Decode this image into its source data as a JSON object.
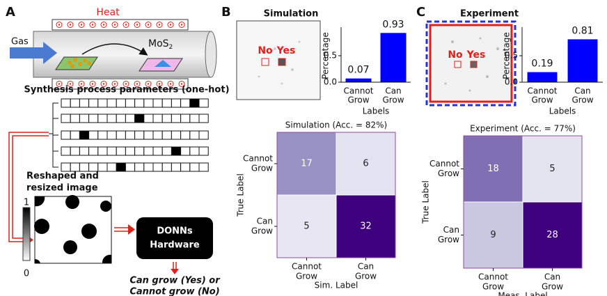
{
  "figure": {
    "panel_a": {
      "letter": "A",
      "heat": "Heat",
      "gas": "Gas",
      "product": "MoS",
      "product_subscript": "2",
      "params_title": "Synthesis process parameters (one-hot)",
      "one_hot": {
        "cells": 16,
        "hot_index": [
          14,
          8,
          2,
          12,
          6
        ]
      },
      "image_title": [
        "Reshaped and",
        "resized image"
      ],
      "colorbar_ticks": [
        1,
        0
      ],
      "hardware": [
        "DONNs",
        "Hardware"
      ],
      "output": [
        "Can grow (Yes) or",
        "Cannot grow (No)"
      ]
    },
    "panel_b": {
      "letter": "B",
      "title": "Simulation",
      "image_labels": [
        "No",
        "Yes"
      ]
    },
    "panel_c": {
      "letter": "C",
      "title": "Experiment",
      "image_labels": [
        "No",
        "Yes"
      ]
    }
  },
  "chart_data": [
    {
      "type": "bar",
      "categories": [
        [
          "Cannot",
          "Grow"
        ],
        [
          "Can",
          "Grow"
        ]
      ],
      "values": [
        0.07,
        0.93
      ],
      "color": "#0000ff",
      "ylabel": "Percentage",
      "xlabel": "Labels",
      "ylim": [
        0,
        1
      ],
      "yticks": [
        {
          "value": 0,
          "label": "0.0"
        },
        {
          "value": 0.5,
          "label": "0.5"
        }
      ]
    },
    {
      "type": "heatmap",
      "title": "Simulation (Acc. = 82%)",
      "ylabel": "True Label",
      "xlabel": "Sim. Label",
      "row_labels": [
        [
          "Cannot",
          "Grow"
        ],
        [
          "Can",
          "Grow"
        ]
      ],
      "col_labels": [
        [
          "Cannot",
          "Grow"
        ],
        [
          "Can",
          "Grow"
        ]
      ],
      "values": [
        [
          17,
          6
        ],
        [
          5,
          32
        ]
      ],
      "colormap": "Purples"
    },
    {
      "type": "bar",
      "categories": [
        [
          "Cannot",
          "Grow"
        ],
        [
          "Can",
          "Grow"
        ]
      ],
      "values": [
        0.19,
        0.81
      ],
      "color": "#0000ff",
      "ylabel": "Percentage",
      "xlabel": "Labels",
      "ylim": [
        0,
        1
      ],
      "yticks": [
        {
          "value": 0,
          "label": "0.0"
        },
        {
          "value": 0.5,
          "label": "0.5"
        }
      ]
    },
    {
      "type": "heatmap",
      "title": "Experiment (Acc. = 77%)",
      "ylabel": "True Label",
      "xlabel": "Meas. Label",
      "row_labels": [
        [
          "Cannot",
          "Grow"
        ],
        [
          "Can",
          "Grow"
        ]
      ],
      "col_labels": [
        [
          "Cannot",
          "Grow"
        ],
        [
          "Can",
          "Grow"
        ]
      ],
      "values": [
        [
          18,
          5
        ],
        [
          9,
          28
        ]
      ],
      "colormap": "Purples"
    }
  ]
}
